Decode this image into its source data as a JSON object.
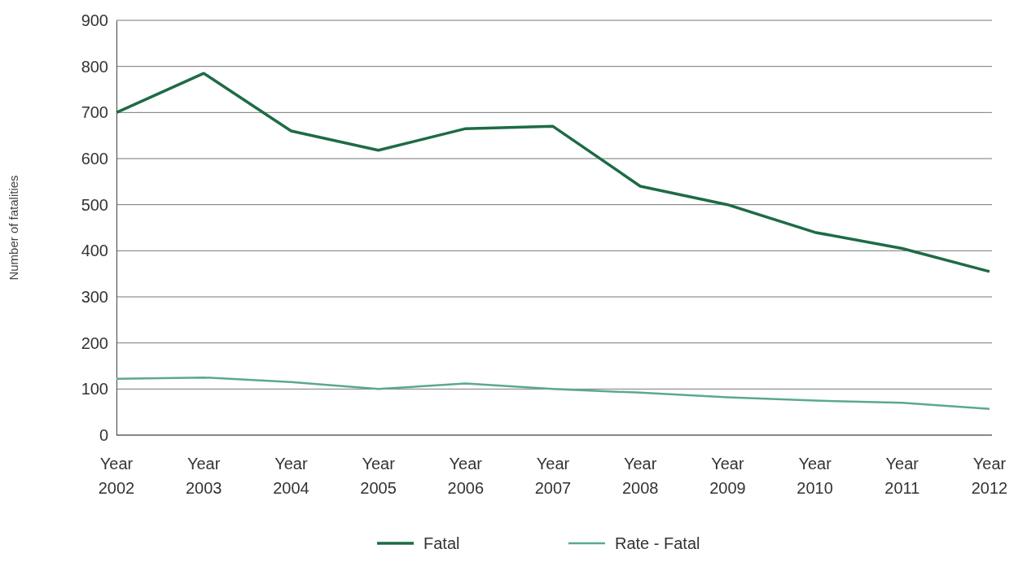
{
  "chart_data": {
    "type": "line",
    "ylabel": "Number of fatalities",
    "categories": [
      "Year 2002",
      "Year 2003",
      "Year 2004",
      "Year 2005",
      "Year 2006",
      "Year 2007",
      "Year 2008",
      "Year 2009",
      "Year 2010",
      "Year 2011",
      "Year 2012"
    ],
    "series": [
      {
        "name": "Fatal",
        "color": "#1e6b45",
        "values": [
          700,
          785,
          660,
          618,
          665,
          670,
          540,
          500,
          440,
          405,
          355
        ]
      },
      {
        "name": "Rate - Fatal",
        "color": "#5aaa8a",
        "values": [
          122,
          125,
          115,
          100,
          112,
          100,
          92,
          82,
          75,
          70,
          57
        ]
      }
    ],
    "ylim": [
      0,
      900
    ],
    "yticks": [
      0,
      100,
      200,
      300,
      400,
      500,
      600,
      700,
      800,
      900
    ],
    "grid": "y",
    "legend": "bottom",
    "marker": "none",
    "line_style": "solid"
  }
}
